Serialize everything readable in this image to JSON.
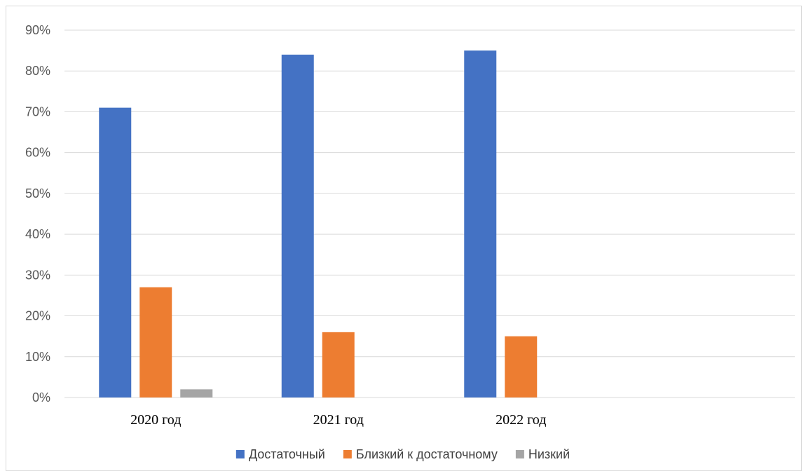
{
  "chart_data": {
    "type": "bar",
    "categories": [
      "2020 год",
      "2021 год",
      "2022 год",
      ""
    ],
    "series": [
      {
        "name": "Достаточный",
        "values": [
          71,
          84,
          85,
          null
        ],
        "color": "#4472c4"
      },
      {
        "name": "Близкий к достаточному",
        "values": [
          27,
          16,
          15,
          null
        ],
        "color": "#ed7d31"
      },
      {
        "name": "Низкий",
        "values": [
          2,
          0,
          0,
          null
        ],
        "color": "#a5a5a5"
      }
    ],
    "ylim": [
      0,
      90
    ],
    "yticks": [
      0,
      10,
      20,
      30,
      40,
      50,
      60,
      70,
      80,
      90
    ],
    "ytick_labels": [
      "0%",
      "10%",
      "20%",
      "30%",
      "40%",
      "50%",
      "60%",
      "70%",
      "80%",
      "90%"
    ],
    "grid": true,
    "legend": "bottom"
  }
}
